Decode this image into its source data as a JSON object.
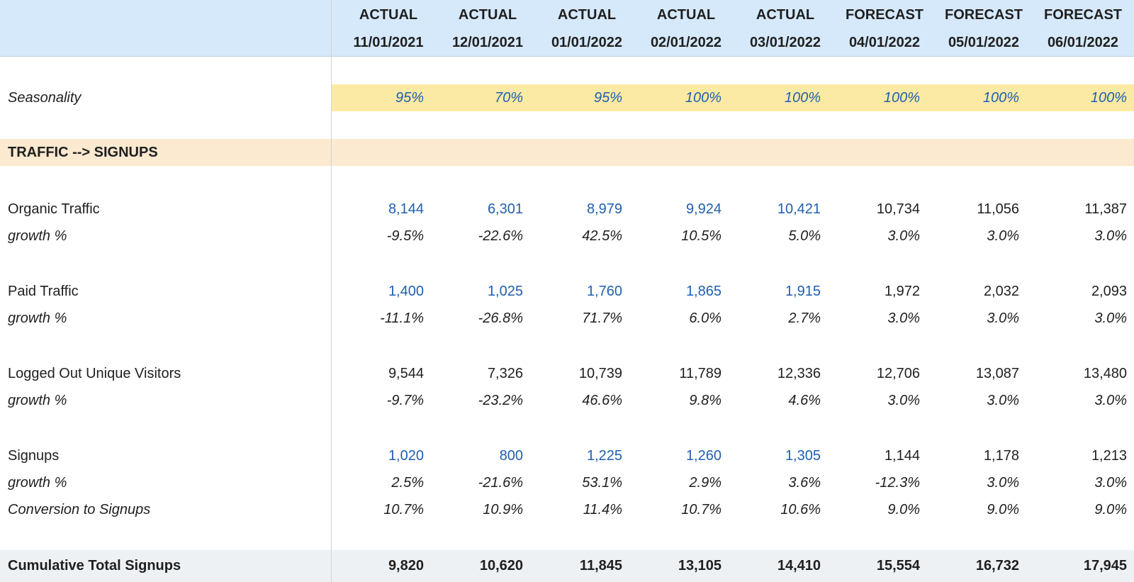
{
  "header": {
    "columns": [
      {
        "type": "ACTUAL",
        "date": "11/01/2021"
      },
      {
        "type": "ACTUAL",
        "date": "12/01/2021"
      },
      {
        "type": "ACTUAL",
        "date": "01/01/2022"
      },
      {
        "type": "ACTUAL",
        "date": "02/01/2022"
      },
      {
        "type": "ACTUAL",
        "date": "03/01/2022"
      },
      {
        "type": "FORECAST",
        "date": "04/01/2022"
      },
      {
        "type": "FORECAST",
        "date": "05/01/2022"
      },
      {
        "type": "FORECAST",
        "date": "06/01/2022"
      }
    ]
  },
  "colors": {
    "header_bg": "#d6e9fb",
    "seasonality_bg": "#fbeaa3",
    "section_bg": "#fbe9d0",
    "total_bg": "#eef1f4",
    "input_blue": "#1f5fb0"
  },
  "seasonality": {
    "label": "Seasonality",
    "values": [
      "95%",
      "70%",
      "95%",
      "100%",
      "100%",
      "100%",
      "100%",
      "100%"
    ]
  },
  "section": {
    "title": "TRAFFIC --> SIGNUPS"
  },
  "organic": {
    "label": "Organic Traffic",
    "values": [
      "8,144",
      "6,301",
      "8,979",
      "9,924",
      "10,421",
      "10,734",
      "11,056",
      "11,387"
    ],
    "growth_label": "growth %",
    "growth": [
      "-9.5%",
      "-22.6%",
      "42.5%",
      "10.5%",
      "5.0%",
      "3.0%",
      "3.0%",
      "3.0%"
    ]
  },
  "paid": {
    "label": "Paid Traffic",
    "values": [
      "1,400",
      "1,025",
      "1,760",
      "1,865",
      "1,915",
      "1,972",
      "2,032",
      "2,093"
    ],
    "growth_label": "growth %",
    "growth": [
      "-11.1%",
      "-26.8%",
      "71.7%",
      "6.0%",
      "2.7%",
      "3.0%",
      "3.0%",
      "3.0%"
    ]
  },
  "visitors": {
    "label": "Logged Out Unique Visitors",
    "values": [
      "9,544",
      "7,326",
      "10,739",
      "11,789",
      "12,336",
      "12,706",
      "13,087",
      "13,480"
    ],
    "growth_label": "growth %",
    "growth": [
      "-9.7%",
      "-23.2%",
      "46.6%",
      "9.8%",
      "4.6%",
      "3.0%",
      "3.0%",
      "3.0%"
    ]
  },
  "signups": {
    "label": "Signups",
    "values": [
      "1,020",
      "800",
      "1,225",
      "1,260",
      "1,305",
      "1,144",
      "1,178",
      "1,213"
    ],
    "growth_label": "growth %",
    "growth": [
      "2.5%",
      "-21.6%",
      "53.1%",
      "2.9%",
      "3.6%",
      "-12.3%",
      "3.0%",
      "3.0%"
    ],
    "conversion_label": "Conversion to Signups",
    "conversion": [
      "10.7%",
      "10.9%",
      "11.4%",
      "10.7%",
      "10.6%",
      "9.0%",
      "9.0%",
      "9.0%"
    ]
  },
  "total": {
    "label": "Cumulative Total Signups",
    "values": [
      "9,820",
      "10,620",
      "11,845",
      "13,105",
      "14,410",
      "15,554",
      "16,732",
      "17,945"
    ]
  }
}
